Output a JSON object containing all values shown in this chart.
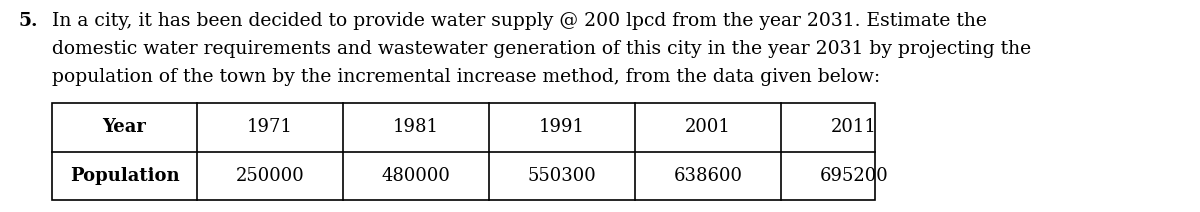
{
  "question_number": "5.",
  "line1": "In a city, it has been decided to provide water supply @ 200 lpcd from the year 2031. Estimate the",
  "line2": "domestic water requirements and wastewater generation of this city in the year 2031 by projecting the",
  "line3": "population of the town by the incremental increase method, from the data given below:",
  "table_headers": [
    "Year",
    "1971",
    "1981",
    "1991",
    "2001",
    "2011"
  ],
  "table_row": [
    "Population",
    "250000",
    "480000",
    "550300",
    "638600",
    "695200"
  ],
  "bg_color": "#ffffff",
  "text_color": "#000000",
  "font_size": 13.5,
  "table_font_size": 13.0,
  "fig_width": 12.0,
  "fig_height": 2.12,
  "dpi": 100
}
